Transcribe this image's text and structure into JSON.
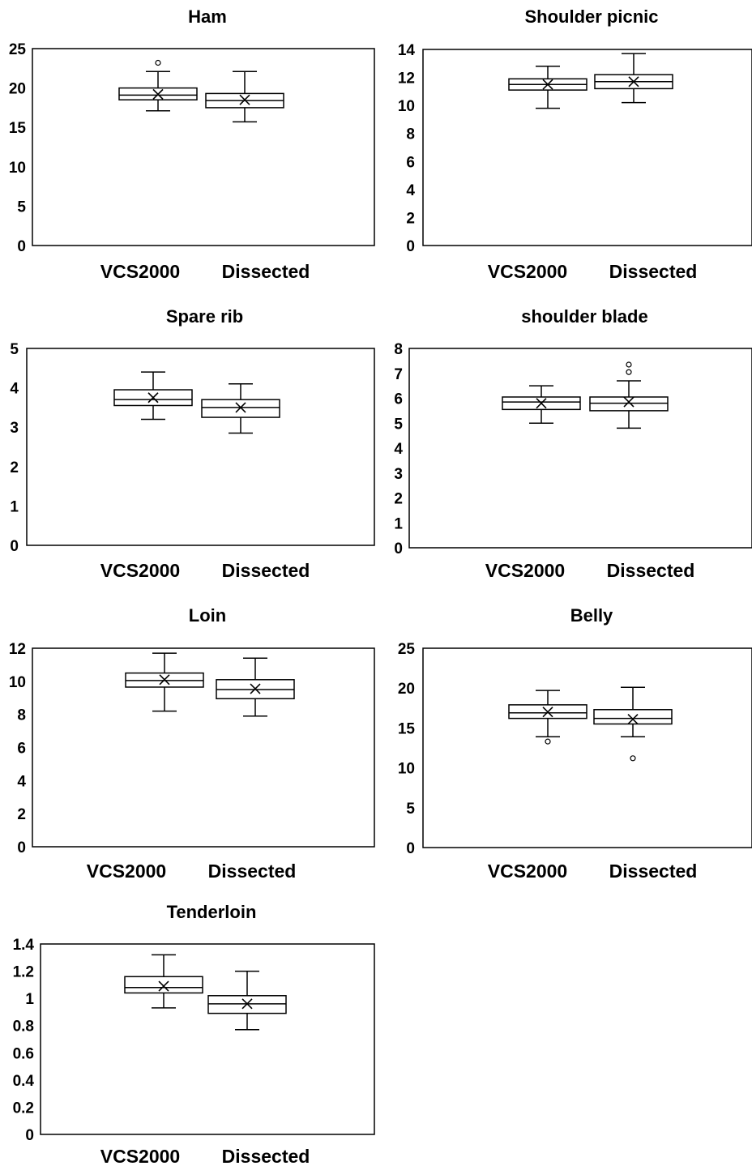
{
  "chart_data": [
    {
      "type": "box",
      "title": "Ham",
      "categories": [
        "VCS2000",
        "Dissected"
      ],
      "ylim": [
        0,
        25
      ],
      "yticks": [
        0,
        5,
        10,
        15,
        20,
        25
      ],
      "ytick_labels": [
        "0",
        "5",
        "10",
        "15",
        "20",
        "25"
      ],
      "boxes": [
        {
          "category": "VCS2000",
          "min": 17.1,
          "q1": 18.5,
          "median": 19.1,
          "q3": 20.0,
          "max": 22.1,
          "mean": 19.2,
          "outliers": [
            23.2
          ]
        },
        {
          "category": "Dissected",
          "min": 15.7,
          "q1": 17.5,
          "median": 18.4,
          "q3": 19.3,
          "max": 22.1,
          "mean": 18.5,
          "outliers": []
        }
      ]
    },
    {
      "type": "box",
      "title": "Shoulder picnic",
      "categories": [
        "VCS2000",
        "Dissected"
      ],
      "ylim": [
        0,
        14
      ],
      "yticks": [
        0,
        2,
        4,
        6,
        8,
        10,
        12,
        14
      ],
      "ytick_labels": [
        "0",
        "2",
        "4",
        "6",
        "8",
        "10",
        "12",
        "14"
      ],
      "boxes": [
        {
          "category": "VCS2000",
          "min": 9.8,
          "q1": 11.1,
          "median": 11.5,
          "q3": 11.9,
          "max": 12.8,
          "mean": 11.5,
          "outliers": []
        },
        {
          "category": "Dissected",
          "min": 10.2,
          "q1": 11.2,
          "median": 11.7,
          "q3": 12.2,
          "max": 13.7,
          "mean": 11.7,
          "outliers": []
        }
      ]
    },
    {
      "type": "box",
      "title": "Spare rib",
      "categories": [
        "VCS2000",
        "Dissected"
      ],
      "ylim": [
        0,
        5
      ],
      "yticks": [
        0,
        1,
        2,
        3,
        4,
        5
      ],
      "ytick_labels": [
        "0",
        "1",
        "2",
        "3",
        "4",
        "5"
      ],
      "boxes": [
        {
          "category": "VCS2000",
          "min": 3.2,
          "q1": 3.55,
          "median": 3.7,
          "q3": 3.95,
          "max": 4.4,
          "mean": 3.75,
          "outliers": []
        },
        {
          "category": "Dissected",
          "min": 2.85,
          "q1": 3.25,
          "median": 3.5,
          "q3": 3.7,
          "max": 4.1,
          "mean": 3.5,
          "outliers": []
        }
      ]
    },
    {
      "type": "box",
      "title": "shoulder blade",
      "categories": [
        "VCS2000",
        "Dissected"
      ],
      "ylim": [
        0,
        8
      ],
      "yticks": [
        0,
        1,
        2,
        3,
        4,
        5,
        6,
        7,
        8
      ],
      "ytick_labels": [
        "0",
        "1",
        "2",
        "3",
        "4",
        "5",
        "6",
        "7",
        "8"
      ],
      "boxes": [
        {
          "category": "VCS2000",
          "min": 5.0,
          "q1": 5.55,
          "median": 5.85,
          "q3": 6.05,
          "max": 6.5,
          "mean": 5.8,
          "outliers": []
        },
        {
          "category": "Dissected",
          "min": 4.8,
          "q1": 5.5,
          "median": 5.8,
          "q3": 6.05,
          "max": 6.7,
          "mean": 5.85,
          "outliers": [
            7.05,
            7.35
          ]
        }
      ]
    },
    {
      "type": "box",
      "title": "Loin",
      "categories": [
        "VCS2000",
        "Dissected"
      ],
      "ylim": [
        0,
        12
      ],
      "yticks": [
        0,
        2,
        4,
        6,
        8,
        10,
        12
      ],
      "ytick_labels": [
        "0",
        "2",
        "4",
        "6",
        "8",
        "10",
        "12"
      ],
      "boxes": [
        {
          "category": "VCS2000",
          "min": 8.2,
          "q1": 9.65,
          "median": 10.05,
          "q3": 10.5,
          "max": 11.7,
          "mean": 10.1,
          "outliers": []
        },
        {
          "category": "Dissected",
          "min": 7.9,
          "q1": 8.95,
          "median": 9.5,
          "q3": 10.1,
          "max": 11.4,
          "mean": 9.55,
          "outliers": []
        }
      ]
    },
    {
      "type": "box",
      "title": "Belly",
      "categories": [
        "VCS2000",
        "Dissected"
      ],
      "ylim": [
        0,
        25
      ],
      "yticks": [
        0,
        5,
        10,
        15,
        20,
        25
      ],
      "ytick_labels": [
        "0",
        "5",
        "10",
        "15",
        "20",
        "25"
      ],
      "boxes": [
        {
          "category": "VCS2000",
          "min": 13.9,
          "q1": 16.2,
          "median": 16.9,
          "q3": 17.9,
          "max": 19.7,
          "mean": 17.0,
          "outliers": [
            13.3
          ]
        },
        {
          "category": "Dissected",
          "min": 13.9,
          "q1": 15.5,
          "median": 16.2,
          "q3": 17.3,
          "max": 20.1,
          "mean": 16.1,
          "outliers": [
            11.2
          ]
        }
      ]
    },
    {
      "type": "box",
      "title": "Tenderloin",
      "categories": [
        "VCS2000",
        "Dissected"
      ],
      "ylim": [
        0,
        1.4
      ],
      "yticks": [
        0,
        0.2,
        0.4,
        0.6,
        0.8,
        1.0,
        1.2,
        1.4
      ],
      "ytick_labels": [
        "0",
        "0.2",
        "0.4",
        "0.6",
        "0.8",
        "1",
        "1.2",
        "1.4"
      ],
      "boxes": [
        {
          "category": "VCS2000",
          "min": 0.93,
          "q1": 1.04,
          "median": 1.08,
          "q3": 1.16,
          "max": 1.32,
          "mean": 1.09,
          "outliers": []
        },
        {
          "category": "Dissected",
          "min": 0.77,
          "q1": 0.89,
          "median": 0.96,
          "q3": 1.02,
          "max": 1.2,
          "mean": 0.96,
          "outliers": []
        }
      ]
    }
  ]
}
